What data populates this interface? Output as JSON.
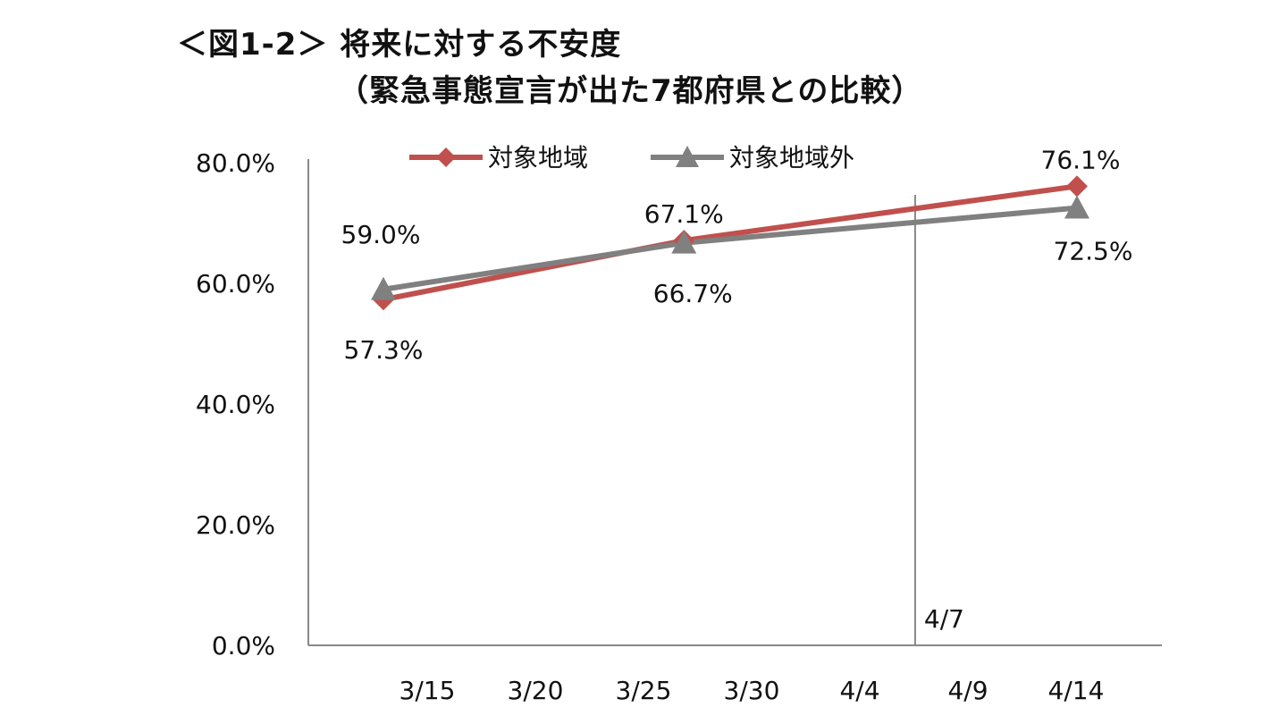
{
  "title": "＜図1-2＞ 将来に対する不安度",
  "subtitle": "（緊急事態宣言が出た7都府県との比較）",
  "colors": {
    "target": "#C0504D",
    "non_target": "#808080",
    "axis": "#888888"
  },
  "chart_data": {
    "type": "line",
    "title": "＜図1-2＞ 将来に対する不安度",
    "subtitle": "（緊急事態宣言が出た7都府県との比較）",
    "x_tick_labels": [
      "3/15",
      "3/20",
      "3/25",
      "3/30",
      "4/4",
      "4/9",
      "4/14"
    ],
    "y_tick_labels": [
      "0.0%",
      "20.0%",
      "40.0%",
      "60.0%",
      "80.0%"
    ],
    "ylim": [
      0,
      80
    ],
    "series": [
      {
        "name": "対象地域",
        "marker": "diamond",
        "color": "#C0504D",
        "points": [
          {
            "x": "3/15",
            "y": 57.3,
            "label": "57.3%"
          },
          {
            "x": "3/28",
            "y": 67.1,
            "label": "67.1%"
          },
          {
            "x": "4/14",
            "y": 76.1,
            "label": "76.1%"
          }
        ]
      },
      {
        "name": "対象地域外",
        "marker": "triangle",
        "color": "#808080",
        "points": [
          {
            "x": "3/15",
            "y": 59.0,
            "label": "59.0%"
          },
          {
            "x": "3/28",
            "y": 66.7,
            "label": "66.7%"
          },
          {
            "x": "4/14",
            "y": 72.5,
            "label": "72.5%"
          }
        ]
      }
    ],
    "reference_line": {
      "x": "4/7",
      "label": "4/7"
    },
    "legend": "top",
    "grid": false
  }
}
